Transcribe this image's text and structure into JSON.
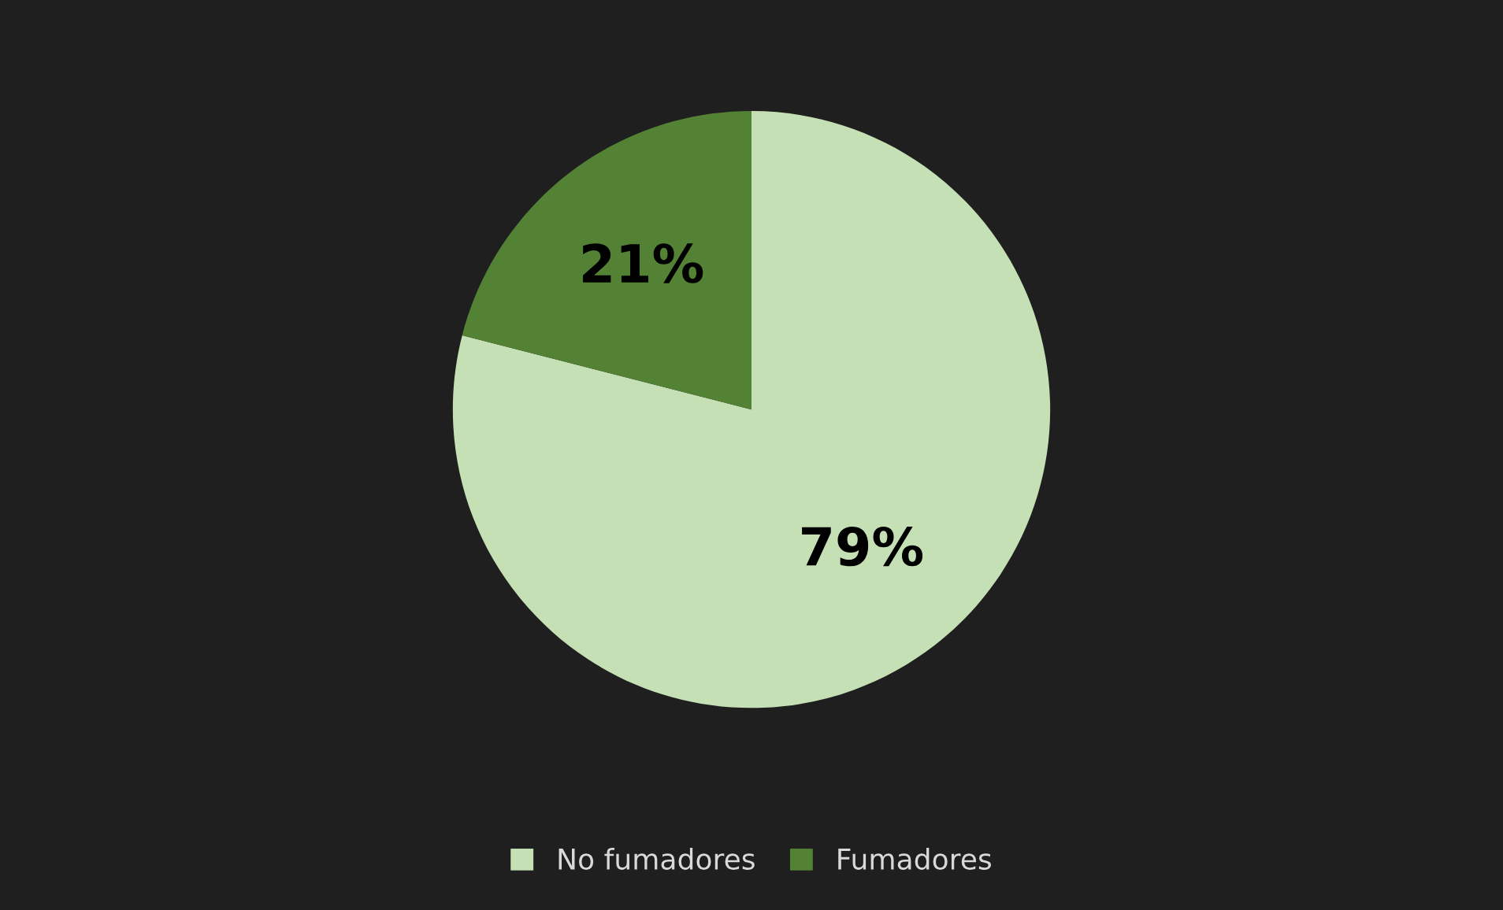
{
  "chart_data": {
    "type": "pie",
    "categories": [
      "No fumadores",
      "Fumadores"
    ],
    "values": [
      79,
      21
    ],
    "colors": [
      "#c5e0b4",
      "#548235"
    ],
    "value_labels": [
      "79%",
      "21%"
    ],
    "legend": "bottom"
  }
}
